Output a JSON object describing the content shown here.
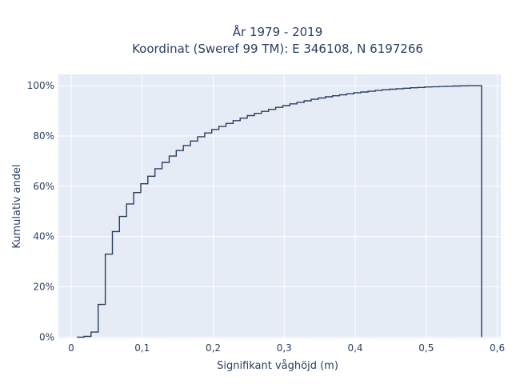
{
  "chart_data": {
    "type": "line",
    "subtype": "cumulative-step",
    "title_line1": "År 1979 - 2019",
    "title_line2": "Koordinat (Sweref 99 TM): E 346108, N 6197266",
    "xlabel": "Signifikant våghöjd (m)",
    "ylabel": "Kumulativ andel",
    "xlim": [
      -0.018,
      0.605
    ],
    "ylim": [
      -0.005,
      1.045
    ],
    "x_ticks": [
      {
        "value": 0,
        "label": "0"
      },
      {
        "value": 0.1,
        "label": "0,1"
      },
      {
        "value": 0.2,
        "label": "0,2"
      },
      {
        "value": 0.3,
        "label": "0,3"
      },
      {
        "value": 0.4,
        "label": "0,4"
      },
      {
        "value": 0.5,
        "label": "0,5"
      },
      {
        "value": 0.6,
        "label": "0,6"
      }
    ],
    "y_ticks": [
      {
        "value": 0,
        "label": "0%"
      },
      {
        "value": 0.2,
        "label": "20%"
      },
      {
        "value": 0.4,
        "label": "40%"
      },
      {
        "value": 0.6,
        "label": "60%"
      },
      {
        "value": 0.8,
        "label": "80%"
      },
      {
        "value": 1.0,
        "label": "100%"
      }
    ],
    "grid": true,
    "colors": {
      "line": "#2a3f5f",
      "plot_bg": "#e5ecf6",
      "grid": "#ffffff"
    },
    "x": [
      0.008,
      0.018,
      0.028,
      0.038,
      0.048,
      0.058,
      0.068,
      0.078,
      0.088,
      0.098,
      0.108,
      0.118,
      0.128,
      0.138,
      0.148,
      0.158,
      0.168,
      0.178,
      0.188,
      0.198,
      0.208,
      0.218,
      0.228,
      0.238,
      0.248,
      0.258,
      0.268,
      0.278,
      0.288,
      0.298,
      0.308,
      0.318,
      0.328,
      0.338,
      0.348,
      0.358,
      0.368,
      0.378,
      0.388,
      0.398,
      0.408,
      0.418,
      0.428,
      0.438,
      0.448,
      0.458,
      0.468,
      0.478,
      0.488,
      0.498,
      0.508,
      0.518,
      0.528,
      0.538,
      0.548,
      0.558,
      0.568,
      0.578
    ],
    "values": [
      0.0,
      0.003,
      0.02,
      0.13,
      0.33,
      0.42,
      0.48,
      0.53,
      0.575,
      0.61,
      0.64,
      0.67,
      0.695,
      0.72,
      0.742,
      0.762,
      0.78,
      0.797,
      0.812,
      0.826,
      0.838,
      0.85,
      0.861,
      0.871,
      0.881,
      0.89,
      0.898,
      0.906,
      0.914,
      0.921,
      0.928,
      0.934,
      0.94,
      0.946,
      0.951,
      0.956,
      0.96,
      0.964,
      0.968,
      0.972,
      0.975,
      0.978,
      0.981,
      0.984,
      0.986,
      0.988,
      0.99,
      0.992,
      0.993,
      0.995,
      0.996,
      0.997,
      0.998,
      0.999,
      0.9995,
      1.0,
      1.0,
      1.0
    ]
  }
}
